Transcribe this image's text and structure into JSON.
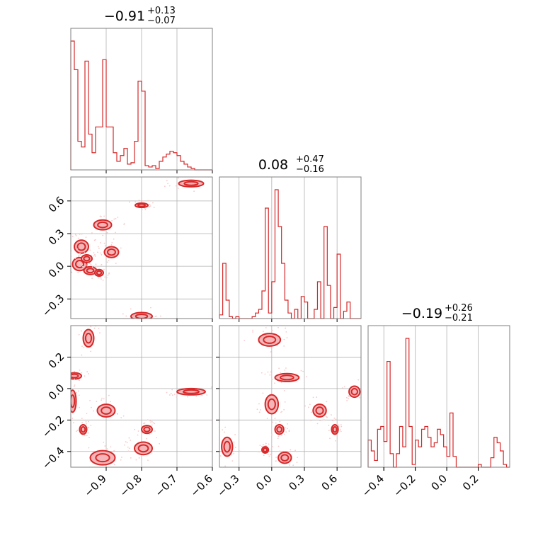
{
  "chart_data": {
    "type": "corner",
    "colors": {
      "line": "#d62728",
      "fill": "#f4b6b8",
      "dots": "#f7c9ca",
      "grid": "#b0b0b0",
      "frame": "#7f7f7f"
    },
    "parameters": [
      {
        "label": "",
        "title_value": "−0.91",
        "title_plus": "+0.13",
        "title_minus": "−0.07",
        "range": [
          -1.0,
          -0.6
        ],
        "ticks": [
          -0.9,
          -0.8,
          -0.7,
          -0.6
        ],
        "tick_labels": [
          "−0.9",
          "−0.8",
          "−0.7",
          "−0.6"
        ]
      },
      {
        "label": "",
        "title_value": "0.08",
        "title_plus": "+0.47",
        "title_minus": "−0.16",
        "range": [
          -0.48,
          0.82
        ],
        "ticks": [
          -0.3,
          0.0,
          0.3,
          0.6
        ],
        "tick_labels": [
          "−0.3",
          "0.0",
          "0.3",
          "0.6"
        ]
      },
      {
        "label": "",
        "title_value": "−0.19",
        "title_plus": "+0.26",
        "title_minus": "−0.21",
        "range": [
          -0.5,
          0.4
        ],
        "ticks": [
          -0.4,
          -0.2,
          0.0,
          0.2
        ],
        "tick_labels": [
          "−0.4",
          "−0.2",
          "0.0",
          "0.2"
        ]
      }
    ],
    "histograms": [
      {
        "param": 0,
        "bins": [
          -1.0,
          -0.99,
          -0.98,
          -0.97,
          -0.96,
          -0.95,
          -0.94,
          -0.93,
          -0.92,
          -0.91,
          -0.9,
          -0.89,
          -0.88,
          -0.87,
          -0.86,
          -0.85,
          -0.84,
          -0.83,
          -0.82,
          -0.81,
          -0.8,
          -0.79,
          -0.78,
          -0.77,
          -0.76,
          -0.75,
          -0.74,
          -0.73,
          -0.72,
          -0.71,
          -0.7,
          -0.69,
          -0.68,
          -0.67,
          -0.66,
          -0.65,
          -0.64,
          -0.63,
          -0.62,
          -0.61,
          -0.6
        ],
        "counts": [
          0.9,
          0.7,
          0.2,
          0.16,
          0.76,
          0.25,
          0.12,
          0.3,
          0.3,
          0.77,
          0.3,
          0.3,
          0.12,
          0.06,
          0.1,
          0.15,
          0.04,
          0.05,
          0.2,
          0.62,
          0.55,
          0.03,
          0.02,
          0.03,
          0.01,
          0.06,
          0.09,
          0.11,
          0.13,
          0.12,
          0.1,
          0.06,
          0.04,
          0.02,
          0.01,
          0.0,
          0.0,
          0.0,
          0.0,
          0.0
        ]
      },
      {
        "param": 1,
        "bins": [
          -0.48,
          -0.45,
          -0.42,
          -0.39,
          -0.36,
          -0.33,
          -0.3,
          -0.27,
          -0.24,
          -0.21,
          -0.18,
          -0.15,
          -0.12,
          -0.09,
          -0.06,
          -0.03,
          0.0,
          0.03,
          0.06,
          0.09,
          0.12,
          0.15,
          0.18,
          0.21,
          0.24,
          0.27,
          0.3,
          0.33,
          0.36,
          0.39,
          0.42,
          0.45,
          0.48,
          0.51,
          0.54,
          0.57,
          0.6,
          0.63,
          0.66,
          0.69,
          0.72,
          0.75,
          0.78,
          0.82
        ],
        "counts": [
          0.02,
          0.3,
          0.1,
          0.01,
          0.0,
          0.01,
          0.0,
          0.0,
          0.0,
          0.0,
          0.01,
          0.03,
          0.05,
          0.15,
          0.6,
          0.03,
          0.2,
          0.7,
          0.5,
          0.3,
          0.1,
          0.03,
          0.0,
          0.05,
          0.0,
          0.12,
          0.09,
          0.0,
          0.0,
          0.05,
          0.2,
          0.0,
          0.5,
          0.18,
          0.0,
          0.06,
          0.35,
          0.0,
          0.04,
          0.09,
          0.0,
          0.0,
          0.0
        ]
      },
      {
        "param": 2,
        "bins": [
          -0.5,
          -0.48,
          -0.46,
          -0.44,
          -0.42,
          -0.4,
          -0.38,
          -0.36,
          -0.34,
          -0.32,
          -0.3,
          -0.28,
          -0.26,
          -0.24,
          -0.22,
          -0.2,
          -0.18,
          -0.16,
          -0.14,
          -0.12,
          -0.1,
          -0.08,
          -0.06,
          -0.04,
          -0.02,
          0.0,
          0.02,
          0.04,
          0.06,
          0.08,
          0.1,
          0.12,
          0.14,
          0.16,
          0.18,
          0.2,
          0.22,
          0.24,
          0.26,
          0.28,
          0.3,
          0.32,
          0.34,
          0.36,
          0.38,
          0.4
        ],
        "counts": [
          0.2,
          0.12,
          0.05,
          0.28,
          0.3,
          0.19,
          0.78,
          0.1,
          0.0,
          0.1,
          0.3,
          0.15,
          0.95,
          0.3,
          0.02,
          0.2,
          0.15,
          0.28,
          0.3,
          0.22,
          0.15,
          0.18,
          0.28,
          0.24,
          0.15,
          0.08,
          0.4,
          0.08,
          0.0,
          0.0,
          0.0,
          0.0,
          0.0,
          0.0,
          0.0,
          0.02,
          0.0,
          0.0,
          0.0,
          0.07,
          0.22,
          0.18,
          0.12,
          0.02,
          0.0
        ]
      }
    ],
    "scatter_2d": [
      {
        "x_param": 0,
        "y_param": 1,
        "blobs": [
          {
            "x": -0.97,
            "y": 0.18,
            "rx": 0.02,
            "ry": 0.06
          },
          {
            "x": -0.975,
            "y": 0.02,
            "rx": 0.02,
            "ry": 0.06
          },
          {
            "x": -0.955,
            "y": 0.07,
            "rx": 0.015,
            "ry": 0.035
          },
          {
            "x": -0.945,
            "y": -0.04,
            "rx": 0.018,
            "ry": 0.035
          },
          {
            "x": -0.92,
            "y": -0.06,
            "rx": 0.012,
            "ry": 0.03
          },
          {
            "x": -0.91,
            "y": 0.38,
            "rx": 0.025,
            "ry": 0.045
          },
          {
            "x": -0.885,
            "y": 0.13,
            "rx": 0.02,
            "ry": 0.05
          },
          {
            "x": -0.8,
            "y": 0.56,
            "rx": 0.018,
            "ry": 0.02
          },
          {
            "x": -0.8,
            "y": -0.46,
            "rx": 0.03,
            "ry": 0.035
          },
          {
            "x": -0.66,
            "y": 0.76,
            "rx": 0.035,
            "ry": 0.03
          }
        ]
      },
      {
        "x_param": 0,
        "y_param": 2,
        "blobs": [
          {
            "x": -0.95,
            "y": 0.32,
            "rx": 0.015,
            "ry": 0.055
          },
          {
            "x": -0.99,
            "y": 0.08,
            "rx": 0.02,
            "ry": 0.02
          },
          {
            "x": -0.995,
            "y": -0.08,
            "rx": 0.01,
            "ry": 0.07
          },
          {
            "x": -0.965,
            "y": -0.26,
            "rx": 0.01,
            "ry": 0.03
          },
          {
            "x": -0.9,
            "y": -0.14,
            "rx": 0.025,
            "ry": 0.04
          },
          {
            "x": -0.91,
            "y": -0.44,
            "rx": 0.035,
            "ry": 0.045
          },
          {
            "x": -0.785,
            "y": -0.26,
            "rx": 0.015,
            "ry": 0.025
          },
          {
            "x": -0.795,
            "y": -0.38,
            "rx": 0.025,
            "ry": 0.04
          },
          {
            "x": -0.66,
            "y": -0.02,
            "rx": 0.04,
            "ry": 0.02
          }
        ]
      },
      {
        "x_param": 1,
        "y_param": 2,
        "blobs": [
          {
            "x": -0.02,
            "y": 0.31,
            "rx": 0.1,
            "ry": 0.04
          },
          {
            "x": 0.14,
            "y": 0.07,
            "rx": 0.11,
            "ry": 0.025
          },
          {
            "x": 0.0,
            "y": -0.1,
            "rx": 0.06,
            "ry": 0.06
          },
          {
            "x": 0.07,
            "y": -0.26,
            "rx": 0.04,
            "ry": 0.03
          },
          {
            "x": -0.06,
            "y": -0.39,
            "rx": 0.03,
            "ry": 0.02
          },
          {
            "x": 0.12,
            "y": -0.44,
            "rx": 0.06,
            "ry": 0.035
          },
          {
            "x": 0.44,
            "y": -0.14,
            "rx": 0.06,
            "ry": 0.04
          },
          {
            "x": 0.58,
            "y": -0.26,
            "rx": 0.03,
            "ry": 0.03
          },
          {
            "x": 0.76,
            "y": -0.02,
            "rx": 0.05,
            "ry": 0.035
          },
          {
            "x": -0.41,
            "y": -0.37,
            "rx": 0.05,
            "ry": 0.06
          }
        ]
      }
    ]
  }
}
